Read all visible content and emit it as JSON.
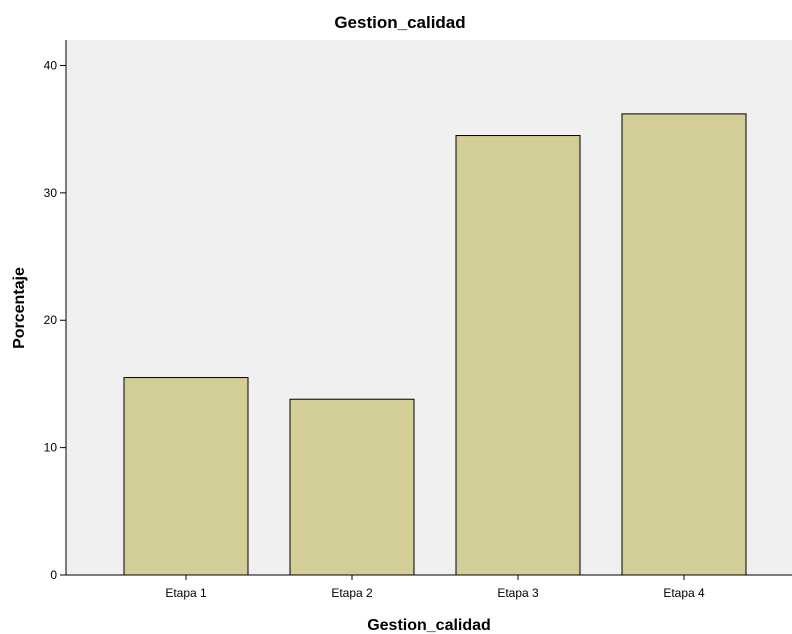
{
  "chart_data": {
    "type": "bar",
    "title": "Gestion_calidad",
    "xlabel": "Gestion_calidad",
    "ylabel": "Porcentaje",
    "categories": [
      "Etapa 1",
      "Etapa 2",
      "Etapa 3",
      "Etapa 4"
    ],
    "values": [
      15.5,
      13.8,
      34.5,
      36.2
    ],
    "ylim": [
      0,
      42
    ],
    "yticks": [
      0,
      10,
      20,
      30,
      40
    ],
    "grid": false,
    "colors": {
      "bar_fill": "#d3cd97",
      "bar_stroke": "#000000",
      "plot_background": "#f0f0f0",
      "page_background": "#ffffff"
    }
  }
}
